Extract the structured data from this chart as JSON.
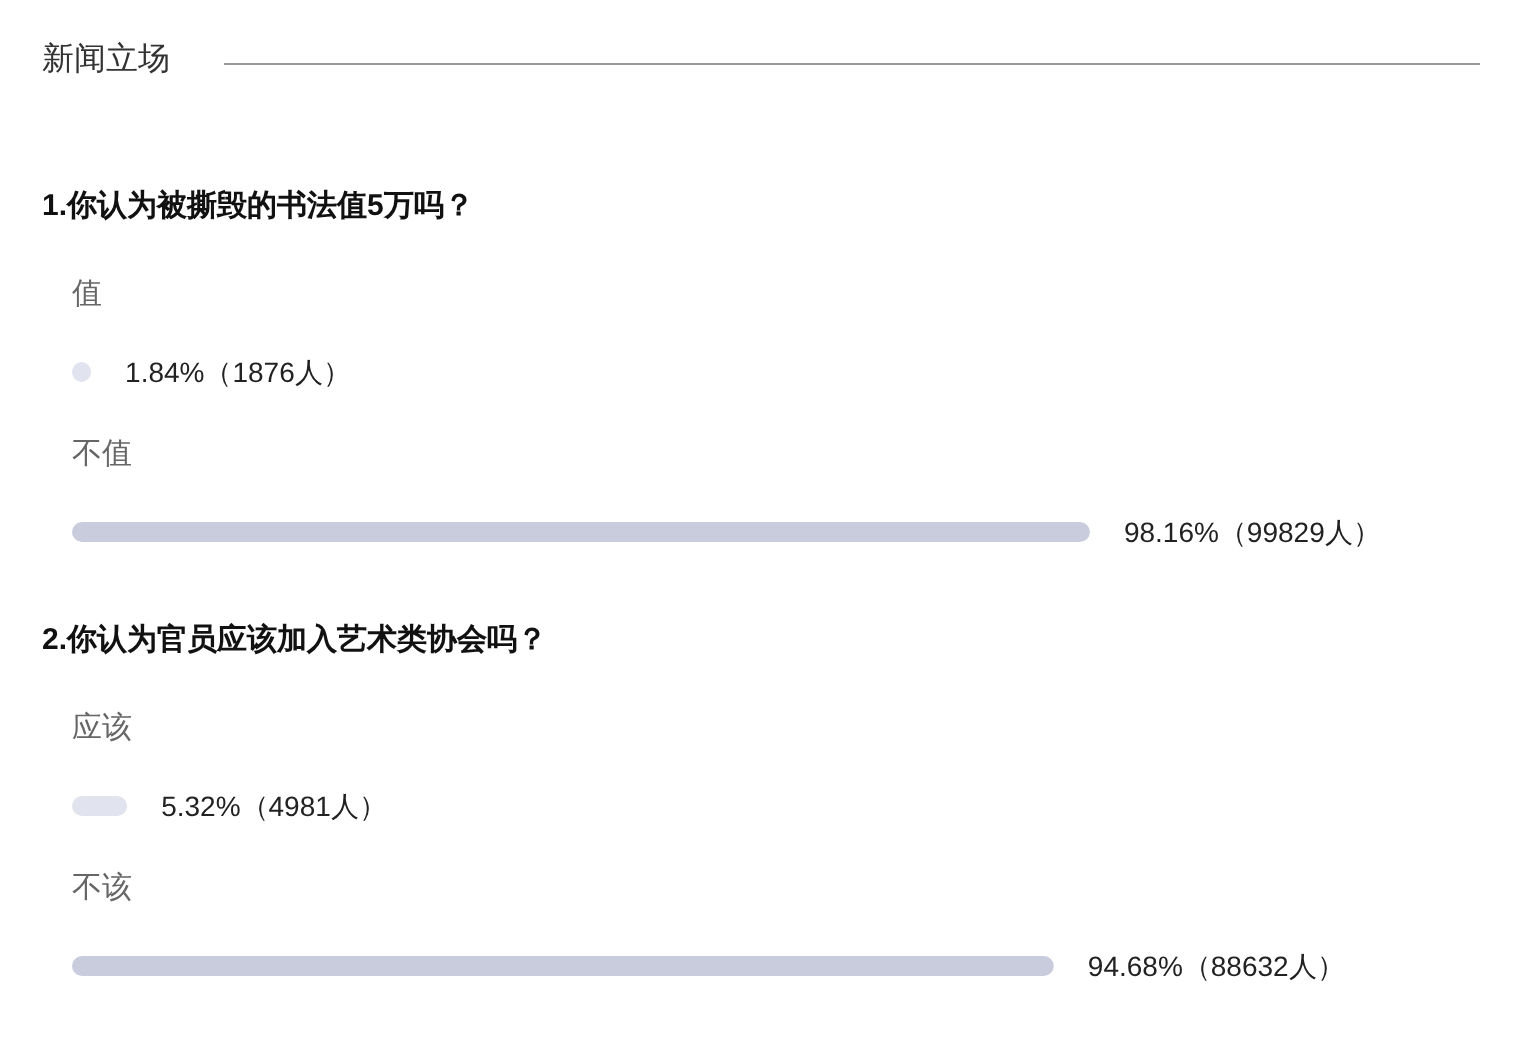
{
  "chart_data": [
    {
      "type": "bar",
      "orientation": "horizontal",
      "title": "新闻立场",
      "subtitle": "1.你认为被撕毁的书法值5万吗？",
      "categories": [
        "值",
        "不值"
      ],
      "values": [
        1.84,
        98.16
      ],
      "colors": [
        "#e1e3ef",
        "#c9ccdd"
      ],
      "value_labels": [
        "1.84%（1876人）",
        "98.16%（99829人）"
      ]
    },
    {
      "type": "bar",
      "orientation": "horizontal",
      "subtitle": "2.你认为官员应该加入艺术类协会吗？",
      "categories": [
        "应该",
        "不该"
      ],
      "values": [
        5.32,
        94.68
      ],
      "colors": [
        "#e1e3ef",
        "#c9ccdd"
      ],
      "value_labels": [
        "5.32%（4981人）",
        "94.68%（88632人）"
      ]
    }
  ]
}
